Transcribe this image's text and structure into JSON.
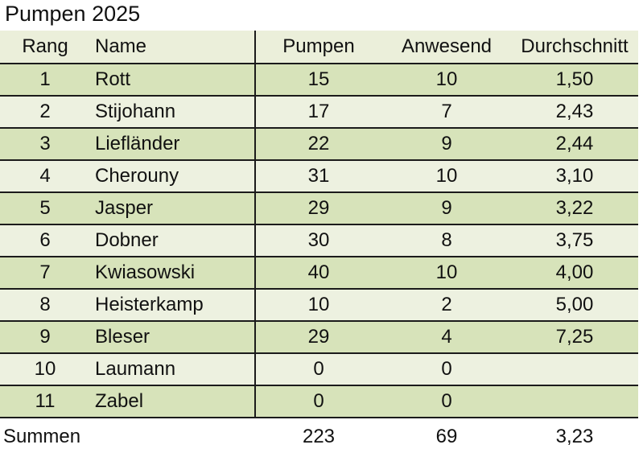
{
  "title": "Pumpen 2025",
  "columns": {
    "rang": "Rang",
    "name": "Name",
    "pumpen": "Pumpen",
    "anwesend": "Anwesend",
    "durchschnitt": "Durchschnitt"
  },
  "rows": [
    {
      "rang": "1",
      "name": "Rott",
      "pumpen": "15",
      "anwesend": "10",
      "durchschnitt": "1,50"
    },
    {
      "rang": "2",
      "name": "Stijohann",
      "pumpen": "17",
      "anwesend": "7",
      "durchschnitt": "2,43"
    },
    {
      "rang": "3",
      "name": "Liefländer",
      "pumpen": "22",
      "anwesend": "9",
      "durchschnitt": "2,44"
    },
    {
      "rang": "4",
      "name": "Cherouny",
      "pumpen": "31",
      "anwesend": "10",
      "durchschnitt": "3,10"
    },
    {
      "rang": "5",
      "name": "Jasper",
      "pumpen": "29",
      "anwesend": "9",
      "durchschnitt": "3,22"
    },
    {
      "rang": "6",
      "name": "Dobner",
      "pumpen": "30",
      "anwesend": "8",
      "durchschnitt": "3,75"
    },
    {
      "rang": "7",
      "name": "Kwiasowski",
      "pumpen": "40",
      "anwesend": "10",
      "durchschnitt": "4,00"
    },
    {
      "rang": "8",
      "name": "Heisterkamp",
      "pumpen": "10",
      "anwesend": "2",
      "durchschnitt": "5,00"
    },
    {
      "rang": "9",
      "name": "Bleser",
      "pumpen": "29",
      "anwesend": "4",
      "durchschnitt": "7,25"
    },
    {
      "rang": "10",
      "name": "Laumann",
      "pumpen": "0",
      "anwesend": "0",
      "durchschnitt": ""
    },
    {
      "rang": "11",
      "name": "Zabel",
      "pumpen": "0",
      "anwesend": "0",
      "durchschnitt": ""
    }
  ],
  "summary": {
    "label": "Summen",
    "pumpen": "223",
    "anwesend": "69",
    "durchschnitt": "3,23"
  },
  "colors": {
    "header_bg": "#ebefda",
    "row_dark": "#d7e3ba",
    "row_light": "#edf1e0",
    "line": "#1b1b1b"
  }
}
